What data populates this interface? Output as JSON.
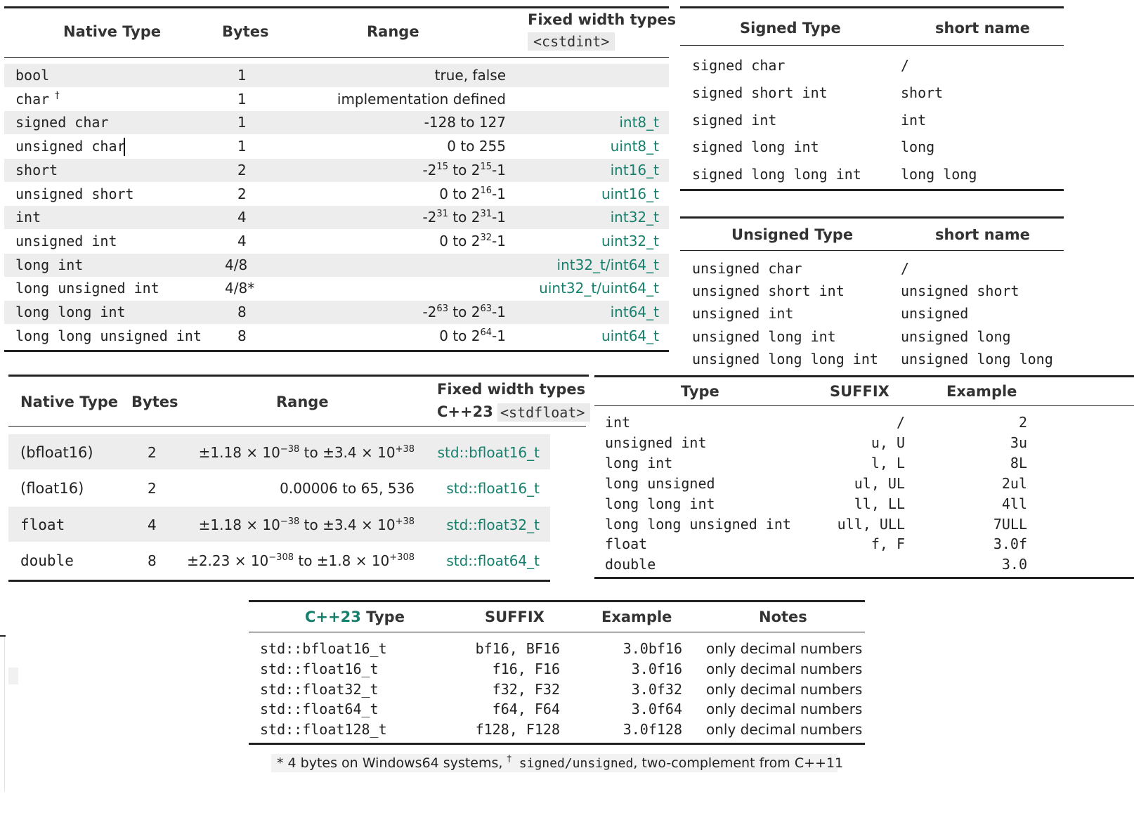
{
  "native_table": {
    "headers": {
      "type": "Native Type",
      "bytes": "Bytes",
      "range": "Range",
      "fixed_line1": "Fixed width types",
      "fixed_line2": "<cstdint>"
    },
    "rows": [
      {
        "type": "bool",
        "dagger": "",
        "bytes": "1",
        "range_plain": "true, false",
        "fixed": ""
      },
      {
        "type": "char",
        "dagger": "†",
        "bytes": "1",
        "range_plain": "implementation defined",
        "fixed": ""
      },
      {
        "type": "signed char",
        "dagger": "",
        "bytes": "1",
        "range_plain": "-128 to 127",
        "fixed": "int8_t"
      },
      {
        "type": "unsigned char",
        "dagger": "",
        "bytes": "1",
        "range_plain": "0 to 255",
        "fixed": "uint8_t"
      },
      {
        "type": "short",
        "dagger": "",
        "bytes": "2",
        "range_a": "-2",
        "exp_a": "15",
        "range_mid": " to 2",
        "exp_b": "15",
        "range_end": "-1",
        "fixed": "int16_t"
      },
      {
        "type": "unsigned short",
        "dagger": "",
        "bytes": "2",
        "range_a": "0 to 2",
        "exp_a": "16",
        "range_end": "-1",
        "fixed": "uint16_t"
      },
      {
        "type": "int",
        "dagger": "",
        "bytes": "4",
        "range_a": "-2",
        "exp_a": "31",
        "range_mid": " to 2",
        "exp_b": "31",
        "range_end": "-1",
        "fixed": "int32_t"
      },
      {
        "type": "unsigned int",
        "dagger": "",
        "bytes": "4",
        "range_a": "0 to 2",
        "exp_a": "32",
        "range_end": "-1",
        "fixed": "uint32_t"
      },
      {
        "type": "long int",
        "dagger": "",
        "bytes": "4/8",
        "range_plain": "",
        "fixed": "int32_t/int64_t"
      },
      {
        "type": "long unsigned int",
        "dagger": "",
        "bytes": "4/8*",
        "range_plain": "",
        "fixed": "uint32_t/uint64_t"
      },
      {
        "type": "long long int",
        "dagger": "",
        "bytes": "8",
        "range_a": "-2",
        "exp_a": "63",
        "range_mid": " to 2",
        "exp_b": "63",
        "range_end": "-1",
        "fixed": "int64_t"
      },
      {
        "type": "long long unsigned int",
        "dagger": "",
        "bytes": "8",
        "range_a": "0 to 2",
        "exp_a": "64",
        "range_end": "-1",
        "fixed": "uint64_t"
      }
    ]
  },
  "signed_table": {
    "headers": {
      "type": "Signed Type",
      "short": "short name"
    },
    "rows": [
      {
        "type": "signed char",
        "short": "/"
      },
      {
        "type": "signed short int",
        "short": "short"
      },
      {
        "type": "signed int",
        "short": "int"
      },
      {
        "type": "signed long int",
        "short": "long"
      },
      {
        "type": "signed long long int",
        "short": "long long"
      }
    ]
  },
  "unsigned_table": {
    "headers": {
      "type": "Unsigned Type",
      "short": "short name"
    },
    "rows": [
      {
        "type": "unsigned char",
        "short": "/"
      },
      {
        "type": "unsigned short int",
        "short": "unsigned short"
      },
      {
        "type": "unsigned int",
        "short": "unsigned"
      },
      {
        "type": "unsigned long int",
        "short": "unsigned long"
      },
      {
        "type": "unsigned long long int",
        "short": "unsigned long long"
      }
    ]
  },
  "float_table": {
    "headers": {
      "type": "Native Type",
      "bytes": "Bytes",
      "range": "Range",
      "fixed_line1": "Fixed width types",
      "cpp23": "C++23",
      "fixed_line2": "<stdfloat>"
    },
    "rows": [
      {
        "type": "(bfloat16)",
        "mono": false,
        "bytes": "2",
        "range_a": "±1.18 × 10",
        "exp_a": "−38",
        "range_mid": " to ±3.4 × 10",
        "exp_b": "+38",
        "fixed": "std::bfloat16_t"
      },
      {
        "type": "(float16)",
        "mono": false,
        "bytes": "2",
        "range_plain": "0.00006 to 65, 536",
        "fixed": "std::float16_t"
      },
      {
        "type": "float",
        "mono": true,
        "bytes": "4",
        "range_a": "±1.18 × 10",
        "exp_a": "−38",
        "range_mid": " to ±3.4 × 10",
        "exp_b": "+38",
        "fixed": "std::float32_t"
      },
      {
        "type": "double",
        "mono": true,
        "bytes": "8",
        "range_a": "±2.23 × 10",
        "exp_a": "−308",
        "range_mid": " to ±1.8 × 10",
        "exp_b": "+308",
        "fixed": "std::float64_t"
      }
    ]
  },
  "suffix_table": {
    "headers": {
      "type": "Type",
      "suffix": "SUFFIX",
      "example": "Example"
    },
    "rows": [
      {
        "type": "int",
        "suffix": "/",
        "example": "2"
      },
      {
        "type": "unsigned int",
        "suffix": "u, U",
        "example": "3u"
      },
      {
        "type": "long int",
        "suffix": "l, L",
        "example": "8L"
      },
      {
        "type": "long unsigned",
        "suffix": "ul, UL",
        "example": "2ul"
      },
      {
        "type": "long long int",
        "suffix": "ll, LL",
        "example": "4ll"
      },
      {
        "type": "long long unsigned int",
        "suffix": "ull, ULL",
        "example": "7ULL"
      },
      {
        "type": "float",
        "suffix": "f, F",
        "example": "3.0f"
      },
      {
        "type": "double",
        "suffix": "",
        "example": "3.0"
      }
    ]
  },
  "cpp23_table": {
    "headers": {
      "cpp23": "C++23",
      "type": " Type",
      "suffix": "SUFFIX",
      "example": "Example",
      "notes": "Notes"
    },
    "rows": [
      {
        "type": "std::bfloat16_t",
        "suffix": "bf16, BF16",
        "example": "3.0bf16",
        "notes": "only decimal numbers"
      },
      {
        "type": "std::float16_t",
        "suffix": "f16, F16",
        "example": "3.0f16",
        "notes": "only decimal numbers"
      },
      {
        "type": "std::float32_t",
        "suffix": "f32, F32",
        "example": "3.0f32",
        "notes": "only decimal numbers"
      },
      {
        "type": "std::float64_t",
        "suffix": "f64, F64",
        "example": "3.0f64",
        "notes": "only decimal numbers"
      },
      {
        "type": "std::float128_t",
        "suffix": "f128, F128",
        "example": "3.0f128",
        "notes": "only decimal numbers"
      }
    ]
  },
  "footnote": {
    "star": "*",
    "part1": " 4 bytes on Windows64 systems, ",
    "dagger": "†",
    "code": " signed/unsigned",
    "part2": ", two-complement from C++11"
  },
  "colors": {
    "accent_green": "#17806d",
    "band_gray": "#ededed",
    "rule": "#222222"
  }
}
